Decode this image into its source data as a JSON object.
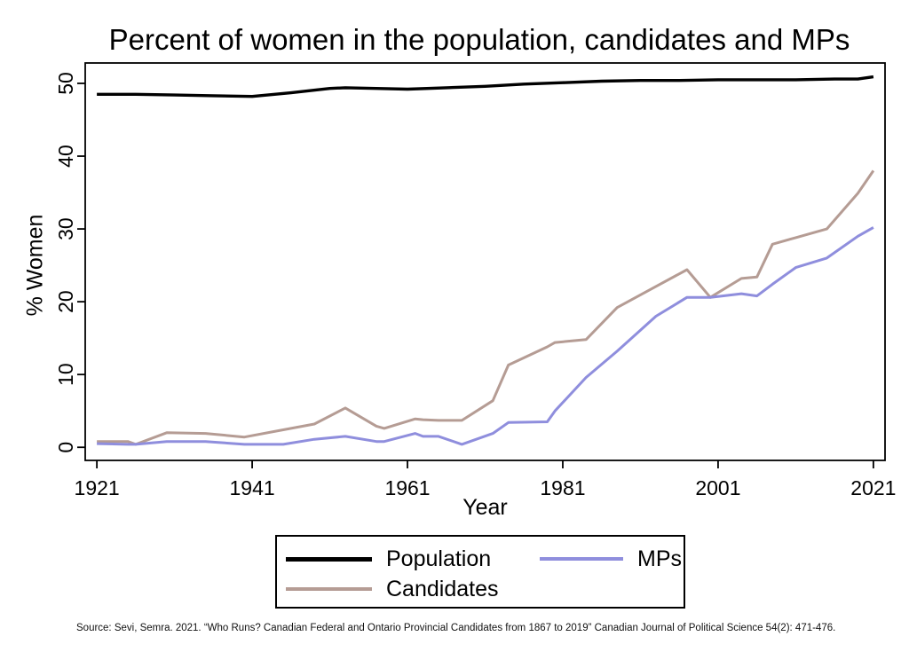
{
  "title": "Percent of women in the population, candidates and MPs",
  "source_note": "Source: Sevi, Semra. 2021. “Who Runs? Canadian Federal and Ontario Provincial Candidates from 1867 to 2019” Canadian Journal of Political Science 54(2): 471-476.",
  "colors": {
    "population": "#000000",
    "candidates": "#b59c94",
    "mps": "#8f8edd",
    "axis": "#000000",
    "background": "#ffffff"
  },
  "chart_data": {
    "type": "line",
    "title": "Percent of women in the population, candidates and MPs",
    "xlabel": "Year",
    "ylabel": "% Women",
    "xticks": [
      1921,
      1941,
      1961,
      1981,
      2001,
      2021
    ],
    "yticks": [
      0,
      10,
      20,
      30,
      40,
      50
    ],
    "xlim": [
      1919.5,
      2022.5
    ],
    "ylim": [
      -1.8,
      52.8
    ],
    "grid": false,
    "legend_position": "bottom",
    "series": [
      {
        "name": "Population",
        "color": "#000000",
        "points": [
          [
            1921,
            48.5
          ],
          [
            1926,
            48.5
          ],
          [
            1931,
            48.4
          ],
          [
            1936,
            48.3
          ],
          [
            1941,
            48.2
          ],
          [
            1946,
            48.7
          ],
          [
            1951,
            49.3
          ],
          [
            1953,
            49.4
          ],
          [
            1957,
            49.3
          ],
          [
            1961,
            49.2
          ],
          [
            1966,
            49.4
          ],
          [
            1971,
            49.6
          ],
          [
            1976,
            49.9
          ],
          [
            1981,
            50.1
          ],
          [
            1986,
            50.3
          ],
          [
            1991,
            50.4
          ],
          [
            1996,
            50.4
          ],
          [
            2001,
            50.5
          ],
          [
            2006,
            50.5
          ],
          [
            2011,
            50.5
          ],
          [
            2016,
            50.6
          ],
          [
            2019,
            50.6
          ],
          [
            2021,
            50.9
          ]
        ]
      },
      {
        "name": "Candidates",
        "color": "#b59c94",
        "points": [
          [
            1921,
            0.8
          ],
          [
            1925,
            0.8
          ],
          [
            1926,
            0.4
          ],
          [
            1930,
            2.0
          ],
          [
            1935,
            1.9
          ],
          [
            1940,
            1.4
          ],
          [
            1945,
            2.4
          ],
          [
            1949,
            3.2
          ],
          [
            1953,
            5.4
          ],
          [
            1957,
            2.9
          ],
          [
            1958,
            2.6
          ],
          [
            1962,
            3.9
          ],
          [
            1963,
            3.8
          ],
          [
            1965,
            3.7
          ],
          [
            1968,
            3.7
          ],
          [
            1972,
            6.4
          ],
          [
            1974,
            11.3
          ],
          [
            1979,
            13.8
          ],
          [
            1980,
            14.4
          ],
          [
            1984,
            14.8
          ],
          [
            1988,
            19.2
          ],
          [
            1993,
            22.1
          ],
          [
            1997,
            24.4
          ],
          [
            2000,
            20.6
          ],
          [
            2004,
            23.2
          ],
          [
            2006,
            23.4
          ],
          [
            2008,
            27.9
          ],
          [
            2011,
            28.8
          ],
          [
            2015,
            30.0
          ],
          [
            2019,
            34.9
          ],
          [
            2021,
            38.0
          ]
        ]
      },
      {
        "name": "MPs",
        "color": "#8f8edd",
        "points": [
          [
            1921,
            0.5
          ],
          [
            1925,
            0.4
          ],
          [
            1926,
            0.4
          ],
          [
            1930,
            0.8
          ],
          [
            1935,
            0.8
          ],
          [
            1940,
            0.4
          ],
          [
            1945,
            0.4
          ],
          [
            1949,
            1.1
          ],
          [
            1953,
            1.5
          ],
          [
            1957,
            0.8
          ],
          [
            1958,
            0.8
          ],
          [
            1962,
            1.9
          ],
          [
            1963,
            1.5
          ],
          [
            1965,
            1.5
          ],
          [
            1968,
            0.4
          ],
          [
            1972,
            1.9
          ],
          [
            1974,
            3.4
          ],
          [
            1979,
            3.5
          ],
          [
            1980,
            5.0
          ],
          [
            1984,
            9.6
          ],
          [
            1988,
            13.2
          ],
          [
            1993,
            18.0
          ],
          [
            1997,
            20.6
          ],
          [
            2000,
            20.6
          ],
          [
            2004,
            21.1
          ],
          [
            2006,
            20.8
          ],
          [
            2008,
            22.4
          ],
          [
            2011,
            24.7
          ],
          [
            2015,
            26.0
          ],
          [
            2019,
            29.0
          ],
          [
            2021,
            30.2
          ]
        ]
      }
    ]
  }
}
